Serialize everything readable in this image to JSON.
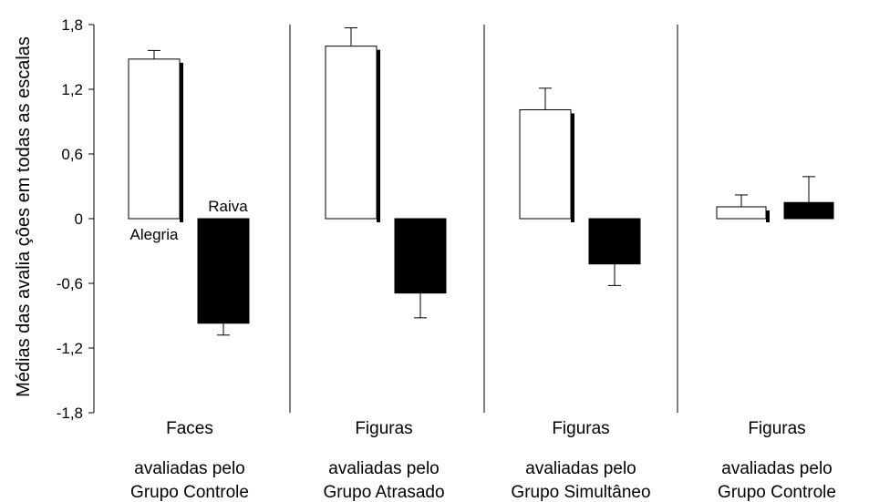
{
  "chart_data": {
    "type": "bar",
    "ylabel": "Médias das avalia çôes em todas as escalas",
    "ylim": [
      -1.8,
      1.8
    ],
    "yticks": [
      "1,8",
      "1,2",
      "0,6",
      "0",
      "-0,6",
      "-1,2",
      "-1,8"
    ],
    "ytick_values": [
      1.8,
      1.2,
      0.6,
      0,
      -0.6,
      -1.2,
      -1.8
    ],
    "grid": false,
    "legend": "inline labels in first group",
    "series": [
      {
        "name": "Alegria",
        "color": "#ffffff",
        "values": [
          1.48,
          1.6,
          1.01,
          0.11
        ],
        "errors": [
          0.08,
          0.17,
          0.2,
          0.11
        ]
      },
      {
        "name": "Raiva",
        "color": "#000000",
        "values": [
          -0.97,
          -0.69,
          -0.42,
          0.15
        ],
        "errors": [
          0.11,
          0.23,
          0.2,
          0.24
        ]
      }
    ],
    "groups": [
      {
        "line1": "Faces",
        "line2": "avaliadas pelo",
        "line3": "Grupo Controle"
      },
      {
        "line1": "Figuras",
        "line2": "avaliadas pelo",
        "line3": "Grupo Atrasado"
      },
      {
        "line1": "Figuras",
        "line2": "avaliadas pelo",
        "line3": "Grupo Simultâneo"
      },
      {
        "line1": "Figuras",
        "line2": "avaliadas pelo",
        "line3": "Grupo Controle"
      }
    ]
  }
}
